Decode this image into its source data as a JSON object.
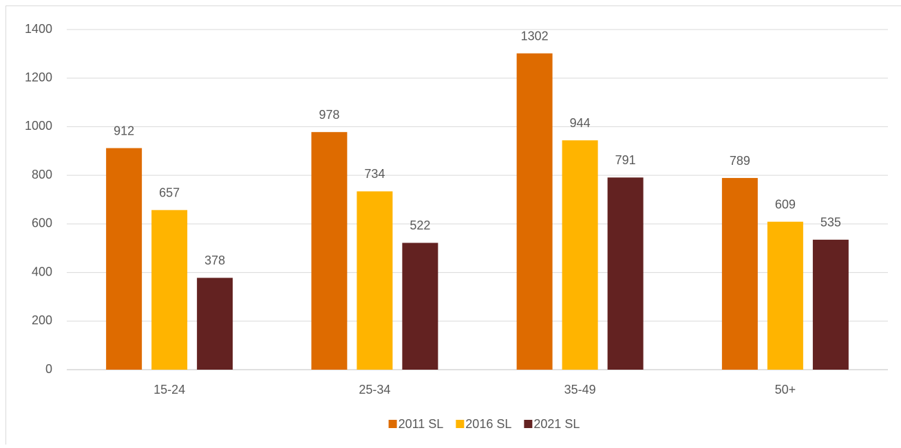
{
  "chart_data": {
    "type": "bar",
    "categories": [
      "15-24",
      "25-34",
      "35-49",
      "50+"
    ],
    "series": [
      {
        "name": "2011 SL",
        "color": "#de6b00",
        "values": [
          912,
          978,
          1302,
          789
        ]
      },
      {
        "name": "2016 SL",
        "color": "#ffb400",
        "values": [
          657,
          734,
          944,
          609
        ]
      },
      {
        "name": "2021 SL",
        "color": "#632221",
        "values": [
          378,
          522,
          791,
          535
        ]
      }
    ],
    "ylim": [
      0,
      1400
    ],
    "yticks": [
      0,
      200,
      400,
      600,
      800,
      1000,
      1200,
      1400
    ],
    "grid": true,
    "legend": "bottom"
  }
}
